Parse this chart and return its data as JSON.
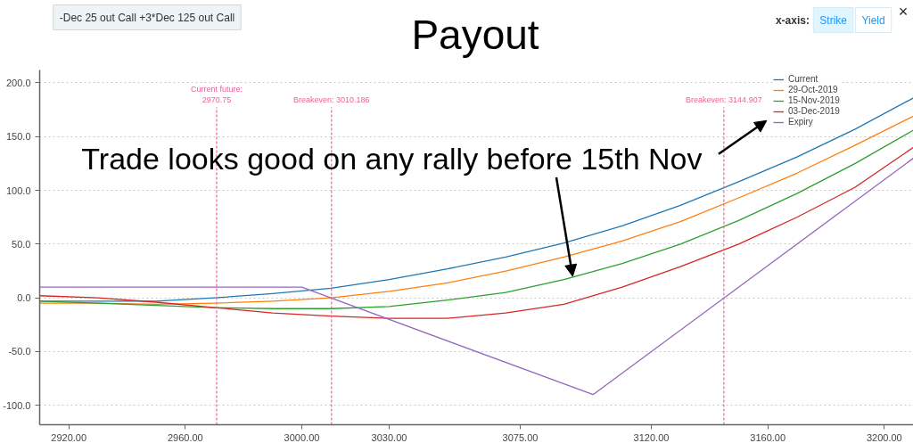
{
  "chart_data": {
    "type": "line",
    "title": "Payout",
    "x": [
      2910,
      2930,
      2950,
      2970,
      2990,
      3010,
      3030,
      3050,
      3070,
      3090,
      3110,
      3130,
      3150,
      3170,
      3190,
      3210
    ],
    "series": [
      {
        "name": "Current",
        "color": "#1f77b4",
        "values": [
          -3,
          -3,
          -3,
          0,
          4,
          9,
          17,
          27,
          38,
          51,
          67,
          86,
          108,
          131,
          157,
          186
        ]
      },
      {
        "name": "29-Oct-2019",
        "color": "#ff7f0e",
        "values": [
          -5,
          -5,
          -6,
          -5,
          -3,
          0,
          6,
          14,
          25,
          38,
          53,
          71,
          93,
          116,
          142,
          169
        ]
      },
      {
        "name": "15-Nov-2019",
        "color": "#2ca02c",
        "values": [
          -3,
          -5,
          -7,
          -9,
          -10,
          -10,
          -8,
          -2,
          5,
          17,
          32,
          50,
          72,
          97,
          125,
          156
        ]
      },
      {
        "name": "03-Dec-2019",
        "color": "#d62728",
        "values": [
          2,
          0,
          -4,
          -9,
          -14,
          -17,
          -19,
          -19,
          -14,
          -6,
          10,
          29,
          50,
          75,
          103,
          140
        ]
      },
      {
        "name": "Expiry",
        "color": "#9467bd",
        "x": [
          2910,
          3000,
          3100,
          3210
        ],
        "values": [
          10,
          10,
          -90,
          130
        ]
      }
    ],
    "xlim": [
      2910,
      3210
    ],
    "xticks": [
      {
        "value": 2920,
        "label": "2920.00"
      },
      {
        "value": 2960,
        "label": "2960.00"
      },
      {
        "value": 3000,
        "label": "3000.00"
      },
      {
        "value": 3030,
        "label": "3030.00"
      },
      {
        "value": 3075,
        "label": "3075.00"
      },
      {
        "value": 3120,
        "label": "3120.00"
      },
      {
        "value": 3160,
        "label": "3160.00"
      },
      {
        "value": 3200,
        "label": "3200.00"
      }
    ],
    "ylim": [
      -118,
      212
    ],
    "yticks": [
      {
        "value": -100,
        "label": "-100.0"
      },
      {
        "value": -50,
        "label": "-50.0"
      },
      {
        "value": 0,
        "label": "0.0"
      },
      {
        "value": 50,
        "label": "50.0"
      },
      {
        "value": 100,
        "label": "100.0"
      },
      {
        "value": 150,
        "label": "150.0"
      },
      {
        "value": 200,
        "label": "200.0"
      }
    ],
    "grid": "y",
    "legend": "top right",
    "ref_lines": [
      {
        "axis": "x",
        "value": 2970.75,
        "label": "Current future:\n2970.75",
        "color": "#f0609a",
        "line_style": "dashed"
      },
      {
        "axis": "x",
        "value": 3010.186,
        "label": "Breakeven: 3010.186",
        "color": "#f0609a",
        "line_style": "dashed"
      },
      {
        "axis": "x",
        "value": 3144.907,
        "label": "Breakeven: 3144.907",
        "color": "#f0609a",
        "line_style": "dashed"
      }
    ],
    "annotations": [
      "-Dec 25 out Call +3*Dec 125 out Call",
      "x-axis:",
      "Strike",
      "Yield",
      "×",
      {
        "text": "Trade looks good on any rally before 15th Nov",
        "x": 3093,
        "y": 20
      }
    ]
  }
}
